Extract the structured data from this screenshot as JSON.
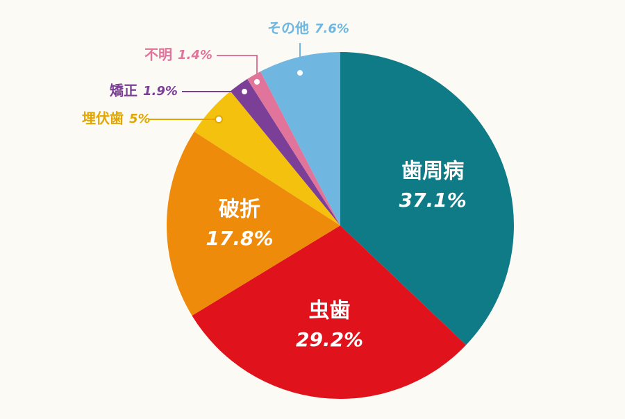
{
  "chart_data": {
    "type": "pie",
    "categories": [
      "歯周病",
      "虫歯",
      "破折",
      "埋伏歯",
      "矯正",
      "不明",
      "その他"
    ],
    "values": [
      37.1,
      29.2,
      17.8,
      5,
      1.9,
      1.4,
      7.6
    ],
    "value_labels": [
      "37.1%",
      "29.2%",
      "17.8%",
      "5%",
      "1.9%",
      "1.4%",
      "7.6%"
    ],
    "colors": [
      "#0f7b86",
      "#e0131d",
      "#ee8b0b",
      "#f4c10f",
      "#7b3f98",
      "#e0749b",
      "#6fb7e0"
    ]
  }
}
